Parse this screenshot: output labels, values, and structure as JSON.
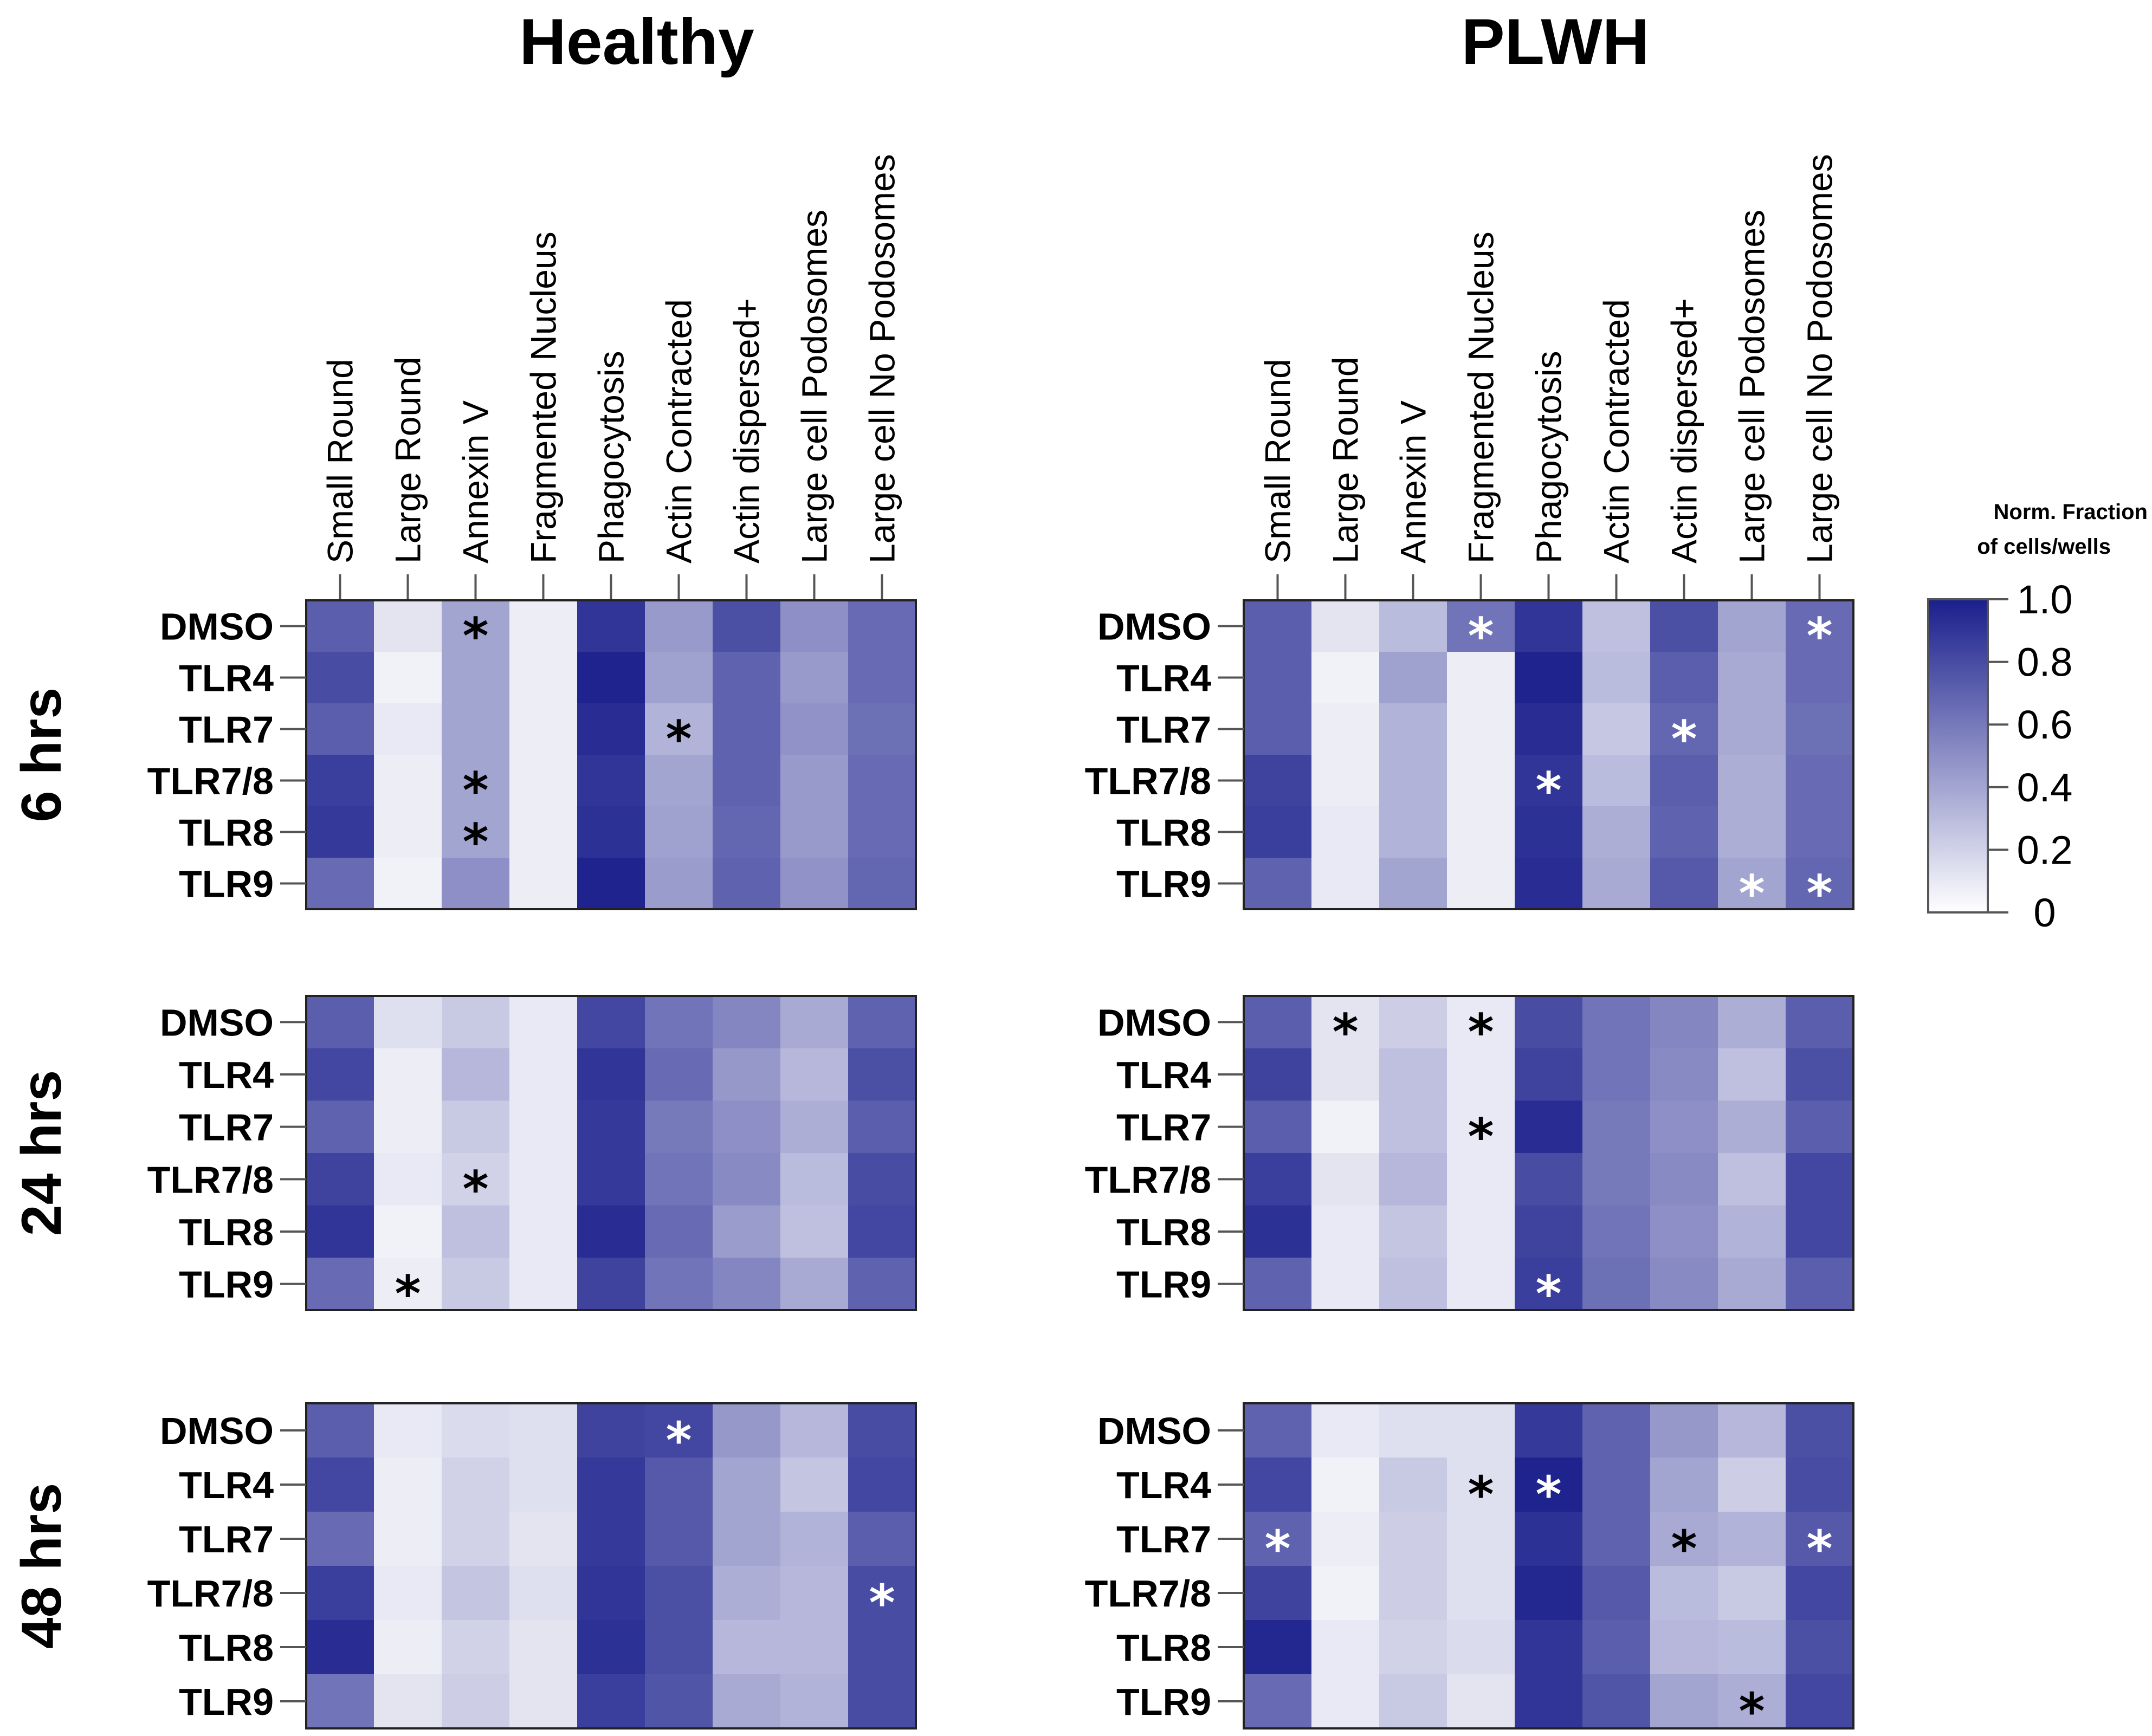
{
  "chart_data": {
    "type": "heatmap",
    "columns": [
      "Small Round",
      "Large Round",
      "Annexin V",
      "Fragmented Nucleus",
      "Phagocytosis",
      "Actin Contracted",
      "Actin dispersed+",
      "Large cell Podosomes",
      "Large cell No Podosomes"
    ],
    "rows": [
      "DMSO",
      "TLR4",
      "TLR7",
      "TLR7/8",
      "TLR8",
      "TLR9"
    ],
    "colorbar": {
      "title_line1": "Norm. Fraction",
      "title_line2": "of cells/wells",
      "ticks": [
        "1.0",
        "0.8",
        "0.6",
        "0.4",
        "0.2",
        "0"
      ],
      "range": [
        0,
        1
      ],
      "low_color": "#ffffff",
      "high_color": "#1a1f8c"
    },
    "panels": [
      {
        "group": "Healthy",
        "time": "6 hrs",
        "values": [
          [
            0.72,
            0.12,
            0.4,
            0.08,
            0.9,
            0.45,
            0.78,
            0.5,
            0.66
          ],
          [
            0.8,
            0.06,
            0.4,
            0.08,
            0.98,
            0.42,
            0.7,
            0.45,
            0.66
          ],
          [
            0.72,
            0.1,
            0.4,
            0.08,
            0.94,
            0.34,
            0.7,
            0.48,
            0.64
          ],
          [
            0.86,
            0.08,
            0.4,
            0.08,
            0.9,
            0.4,
            0.7,
            0.45,
            0.66
          ],
          [
            0.88,
            0.08,
            0.4,
            0.08,
            0.92,
            0.42,
            0.68,
            0.45,
            0.66
          ],
          [
            0.66,
            0.06,
            0.5,
            0.08,
            0.98,
            0.44,
            0.7,
            0.48,
            0.68
          ]
        ],
        "stars": [
          {
            "row": 0,
            "col": 2,
            "color": "black"
          },
          {
            "row": 2,
            "col": 5,
            "color": "black"
          },
          {
            "row": 3,
            "col": 2,
            "color": "black"
          },
          {
            "row": 4,
            "col": 2,
            "color": "black"
          }
        ]
      },
      {
        "group": "PLWH",
        "time": "6 hrs",
        "values": [
          [
            0.72,
            0.12,
            0.3,
            0.62,
            0.9,
            0.28,
            0.78,
            0.4,
            0.66
          ],
          [
            0.72,
            0.06,
            0.42,
            0.08,
            0.98,
            0.3,
            0.72,
            0.38,
            0.66
          ],
          [
            0.72,
            0.08,
            0.34,
            0.08,
            0.94,
            0.25,
            0.68,
            0.38,
            0.64
          ],
          [
            0.84,
            0.08,
            0.34,
            0.08,
            0.9,
            0.3,
            0.72,
            0.36,
            0.66
          ],
          [
            0.86,
            0.1,
            0.34,
            0.08,
            0.92,
            0.36,
            0.7,
            0.36,
            0.66
          ],
          [
            0.7,
            0.1,
            0.4,
            0.08,
            0.94,
            0.38,
            0.74,
            0.4,
            0.68
          ]
        ],
        "stars": [
          {
            "row": 0,
            "col": 3,
            "color": "white"
          },
          {
            "row": 0,
            "col": 8,
            "color": "white"
          },
          {
            "row": 2,
            "col": 6,
            "color": "white"
          },
          {
            "row": 3,
            "col": 4,
            "color": "white"
          },
          {
            "row": 5,
            "col": 7,
            "color": "white"
          },
          {
            "row": 5,
            "col": 8,
            "color": "white"
          }
        ]
      },
      {
        "group": "Healthy",
        "time": "24 hrs",
        "values": [
          [
            0.72,
            0.14,
            0.24,
            0.1,
            0.82,
            0.62,
            0.54,
            0.38,
            0.7
          ],
          [
            0.82,
            0.08,
            0.32,
            0.1,
            0.9,
            0.66,
            0.46,
            0.32,
            0.78
          ],
          [
            0.7,
            0.08,
            0.24,
            0.1,
            0.88,
            0.6,
            0.5,
            0.36,
            0.72
          ],
          [
            0.84,
            0.1,
            0.2,
            0.1,
            0.88,
            0.62,
            0.52,
            0.3,
            0.8
          ],
          [
            0.9,
            0.06,
            0.28,
            0.1,
            0.94,
            0.66,
            0.44,
            0.28,
            0.82
          ],
          [
            0.66,
            0.08,
            0.24,
            0.1,
            0.84,
            0.62,
            0.54,
            0.38,
            0.7
          ]
        ],
        "stars": [
          {
            "row": 3,
            "col": 2,
            "color": "black"
          },
          {
            "row": 5,
            "col": 1,
            "color": "black"
          }
        ]
      },
      {
        "group": "PLWH",
        "time": "24 hrs",
        "values": [
          [
            0.72,
            0.12,
            0.22,
            0.1,
            0.8,
            0.62,
            0.54,
            0.36,
            0.72
          ],
          [
            0.84,
            0.12,
            0.28,
            0.1,
            0.84,
            0.62,
            0.52,
            0.28,
            0.78
          ],
          [
            0.72,
            0.06,
            0.28,
            0.1,
            0.94,
            0.6,
            0.5,
            0.36,
            0.72
          ],
          [
            0.86,
            0.12,
            0.32,
            0.1,
            0.8,
            0.6,
            0.52,
            0.28,
            0.82
          ],
          [
            0.92,
            0.1,
            0.26,
            0.1,
            0.84,
            0.62,
            0.5,
            0.34,
            0.82
          ],
          [
            0.7,
            0.1,
            0.28,
            0.1,
            0.86,
            0.64,
            0.52,
            0.38,
            0.72
          ]
        ],
        "stars": [
          {
            "row": 0,
            "col": 1,
            "color": "black"
          },
          {
            "row": 0,
            "col": 3,
            "color": "black"
          },
          {
            "row": 2,
            "col": 3,
            "color": "black"
          },
          {
            "row": 5,
            "col": 4,
            "color": "white"
          }
        ]
      },
      {
        "group": "Healthy",
        "time": "48 hrs",
        "values": [
          [
            0.72,
            0.1,
            0.16,
            0.14,
            0.84,
            0.82,
            0.46,
            0.32,
            0.8
          ],
          [
            0.82,
            0.08,
            0.2,
            0.14,
            0.88,
            0.74,
            0.4,
            0.26,
            0.82
          ],
          [
            0.66,
            0.08,
            0.2,
            0.12,
            0.88,
            0.74,
            0.4,
            0.34,
            0.72
          ],
          [
            0.86,
            0.1,
            0.26,
            0.14,
            0.9,
            0.78,
            0.36,
            0.32,
            0.8
          ],
          [
            0.94,
            0.08,
            0.2,
            0.12,
            0.92,
            0.78,
            0.32,
            0.32,
            0.8
          ],
          [
            0.62,
            0.12,
            0.22,
            0.12,
            0.86,
            0.76,
            0.38,
            0.34,
            0.8
          ]
        ],
        "stars": [
          {
            "row": 0,
            "col": 5,
            "color": "white"
          },
          {
            "row": 3,
            "col": 8,
            "color": "white"
          }
        ]
      },
      {
        "group": "PLWH",
        "time": "48 hrs",
        "values": [
          [
            0.7,
            0.1,
            0.14,
            0.14,
            0.88,
            0.7,
            0.46,
            0.32,
            0.78
          ],
          [
            0.82,
            0.06,
            0.24,
            0.14,
            0.98,
            0.7,
            0.4,
            0.22,
            0.8
          ],
          [
            0.7,
            0.08,
            0.22,
            0.14,
            0.92,
            0.7,
            0.38,
            0.34,
            0.74
          ],
          [
            0.84,
            0.06,
            0.22,
            0.14,
            0.96,
            0.74,
            0.3,
            0.24,
            0.82
          ],
          [
            0.96,
            0.1,
            0.2,
            0.16,
            0.9,
            0.72,
            0.32,
            0.3,
            0.78
          ],
          [
            0.66,
            0.1,
            0.24,
            0.12,
            0.9,
            0.76,
            0.4,
            0.36,
            0.82
          ]
        ],
        "stars": [
          {
            "row": 1,
            "col": 3,
            "color": "black"
          },
          {
            "row": 1,
            "col": 4,
            "color": "white"
          },
          {
            "row": 2,
            "col": 0,
            "color": "white"
          },
          {
            "row": 2,
            "col": 6,
            "color": "black"
          },
          {
            "row": 2,
            "col": 8,
            "color": "white"
          },
          {
            "row": 5,
            "col": 7,
            "color": "black"
          }
        ]
      }
    ]
  }
}
